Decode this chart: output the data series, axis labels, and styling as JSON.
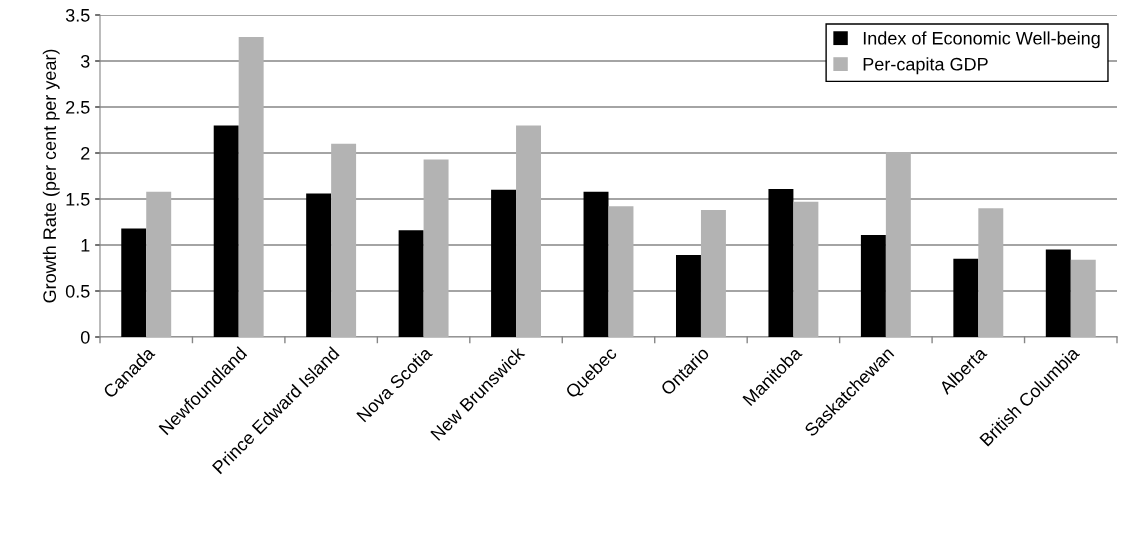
{
  "chart_data": {
    "type": "bar",
    "ylabel": "Growth Rate (per cent per year)",
    "categories": [
      "Canada",
      "Newfoundland",
      "Prince Edward Island",
      "Nova Scotia",
      "New Brunswick",
      "Quebec",
      "Ontario",
      "Manitoba",
      "Saskatchewan",
      "Alberta",
      "British Columbia"
    ],
    "series": [
      {
        "name": "Index of Economic Well-being",
        "color": "#000000",
        "values": [
          1.18,
          2.3,
          1.56,
          1.16,
          1.6,
          1.58,
          0.89,
          1.61,
          1.11,
          0.85,
          0.95
        ]
      },
      {
        "name": "Per-capita GDP",
        "color": "#b3b3b3",
        "values": [
          1.58,
          3.26,
          2.1,
          1.93,
          2.3,
          1.42,
          1.38,
          1.47,
          2.01,
          1.4,
          0.84
        ]
      }
    ],
    "ylim": [
      0,
      3.5
    ],
    "yticks": [
      0,
      0.5,
      1,
      1.5,
      2,
      2.5,
      3,
      3.5
    ],
    "grid": "y",
    "legend": "top right"
  }
}
